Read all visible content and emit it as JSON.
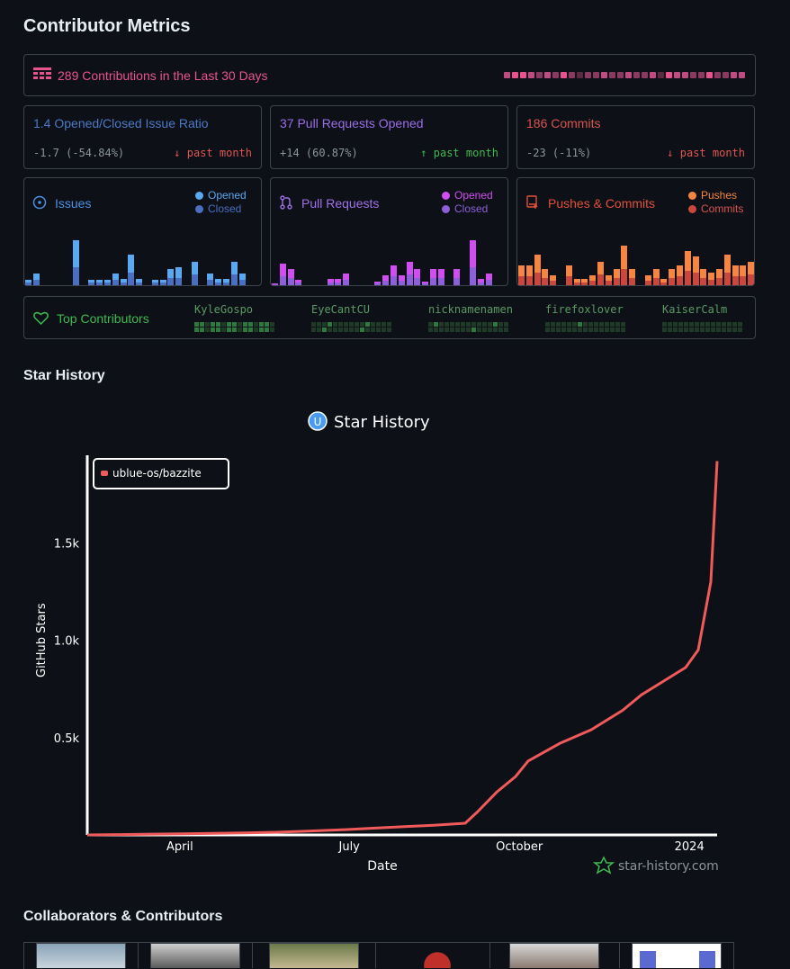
{
  "metrics": {
    "title": "Contributor Metrics",
    "contributions": "289 Contributions in the Last 30 Days",
    "cards": [
      {
        "title": "1.4 Opened/Closed Issue Ratio",
        "delta": "-1.7 (-54.84%)",
        "trend": "↓ past month",
        "color": "#4d79c7",
        "trend_color": "#e05555"
      },
      {
        "title": "37 Pull Requests Opened",
        "delta": "+14 (60.87%)",
        "trend": "↑ past month",
        "color": "#9b6ee8",
        "trend_color": "#3fb950"
      },
      {
        "title": "186 Commits",
        "delta": "-23 (-11%)",
        "trend": "↓ past month",
        "color": "#d9534f",
        "trend_color": "#e05555"
      }
    ],
    "issues": {
      "title": "Issues",
      "legend": [
        "Opened",
        "Closed"
      ]
    },
    "prs": {
      "title": "Pull Requests",
      "legend": [
        "Opened",
        "Closed"
      ]
    },
    "pushes": {
      "title": "Pushes & Commits",
      "legend": [
        "Pushes",
        "Commits"
      ]
    },
    "top": {
      "title": "Top Contributors",
      "names": [
        "KyleGospo",
        "EyeCantCU",
        "nicknamenamen",
        "firefoxlover",
        "KaiserCalm"
      ]
    }
  },
  "star_history": {
    "section_title": "Star History",
    "chart_title": "Star History",
    "watermark": "star-history.com"
  },
  "chart_data": {
    "type": "line",
    "title": "Star History",
    "xlabel": "Date",
    "ylabel": "GitHub Stars",
    "x_ticks": [
      "April",
      "July",
      "October",
      "2024"
    ],
    "y_ticks": [
      "0.5k",
      "1.0k",
      "1.5k"
    ],
    "ylim": [
      0,
      1950
    ],
    "series": [
      {
        "name": "ublue-os/bazzite",
        "color": "#f05a5a",
        "x": [
          0,
          0.05,
          0.1,
          0.15,
          0.2,
          0.25,
          0.3,
          0.35,
          0.4,
          0.45,
          0.5,
          0.55,
          0.6,
          0.62,
          0.65,
          0.68,
          0.7,
          0.75,
          0.8,
          0.85,
          0.88,
          0.92,
          0.95,
          0.97,
          0.99,
          1.0
        ],
        "values": [
          0,
          2,
          4,
          6,
          8,
          10,
          14,
          20,
          26,
          34,
          42,
          50,
          60,
          120,
          220,
          300,
          380,
          470,
          540,
          640,
          720,
          800,
          860,
          950,
          1300,
          1920
        ]
      }
    ]
  },
  "collab": {
    "title": "Collaborators & Contributors"
  }
}
